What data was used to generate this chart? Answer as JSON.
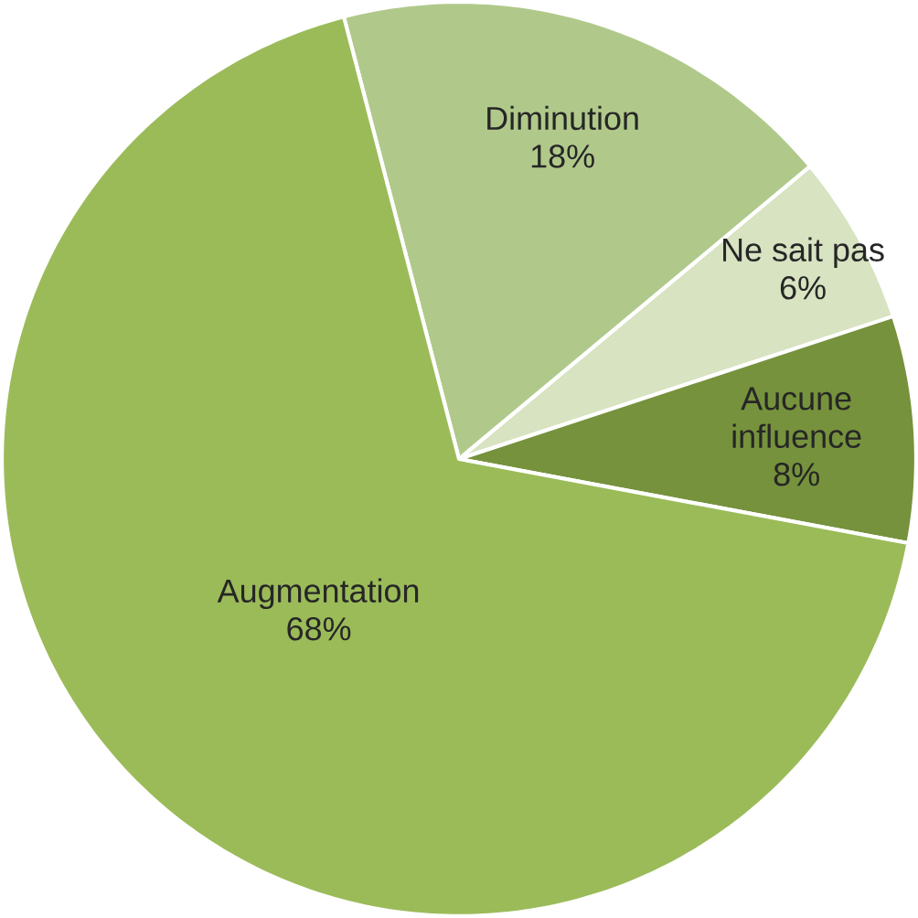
{
  "chart_data": {
    "type": "pie",
    "categories": [
      "Diminution",
      "Ne sait pas",
      "Aucune influence",
      "Augmentation"
    ],
    "values": [
      18,
      6,
      8,
      68
    ],
    "value_labels": [
      "18%",
      "6%",
      "8%",
      "68%"
    ],
    "colors": [
      "#b0c98a",
      "#d7e3c1",
      "#76923c",
      "#9bbb59"
    ]
  }
}
